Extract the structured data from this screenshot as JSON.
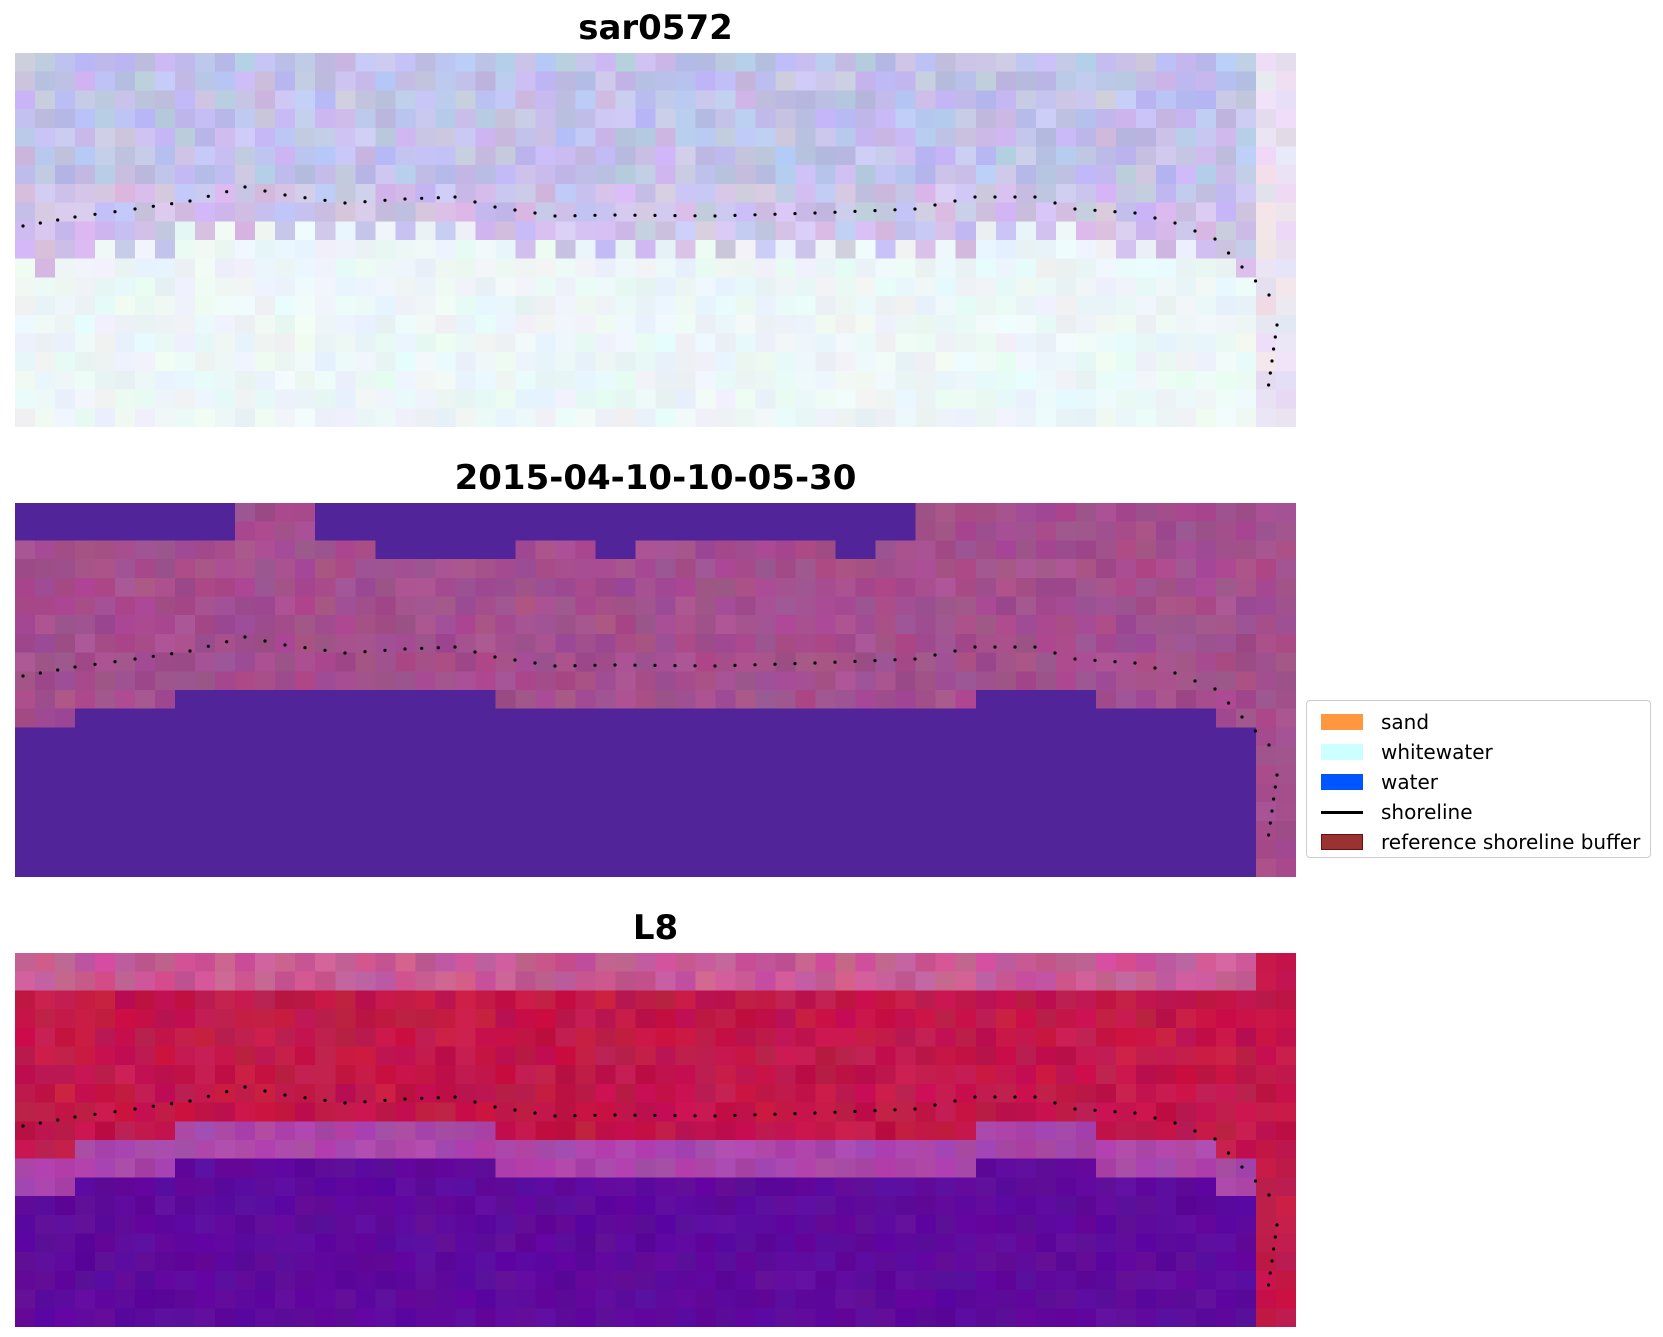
{
  "panels": [
    {
      "title": "sar0572",
      "palette": "sar"
    },
    {
      "title": "2015-04-10-10-05-30",
      "palette": "classified"
    },
    {
      "title": "L8",
      "palette": "l8"
    }
  ],
  "legend": {
    "items": [
      {
        "label": "sand",
        "color": "#ff9640",
        "kind": "patch"
      },
      {
        "label": "whitewater",
        "color": "#ccffff",
        "kind": "patch"
      },
      {
        "label": "water",
        "color": "#0055ff",
        "kind": "patch"
      },
      {
        "label": "shoreline",
        "color": "#000000",
        "kind": "line"
      },
      {
        "label": "reference shoreline buffer",
        "color": "#9a3232",
        "kind": "buffer"
      }
    ]
  },
  "colors": {
    "classified_water": "#52249a",
    "classified_land": "#a44f8e",
    "l8_water": "#5e0a9c",
    "l8_land": "#c2174a",
    "sar_land": "#c2c2e2",
    "sar_water": "#ecf6f8",
    "shoreline_dots": "#000000"
  }
}
